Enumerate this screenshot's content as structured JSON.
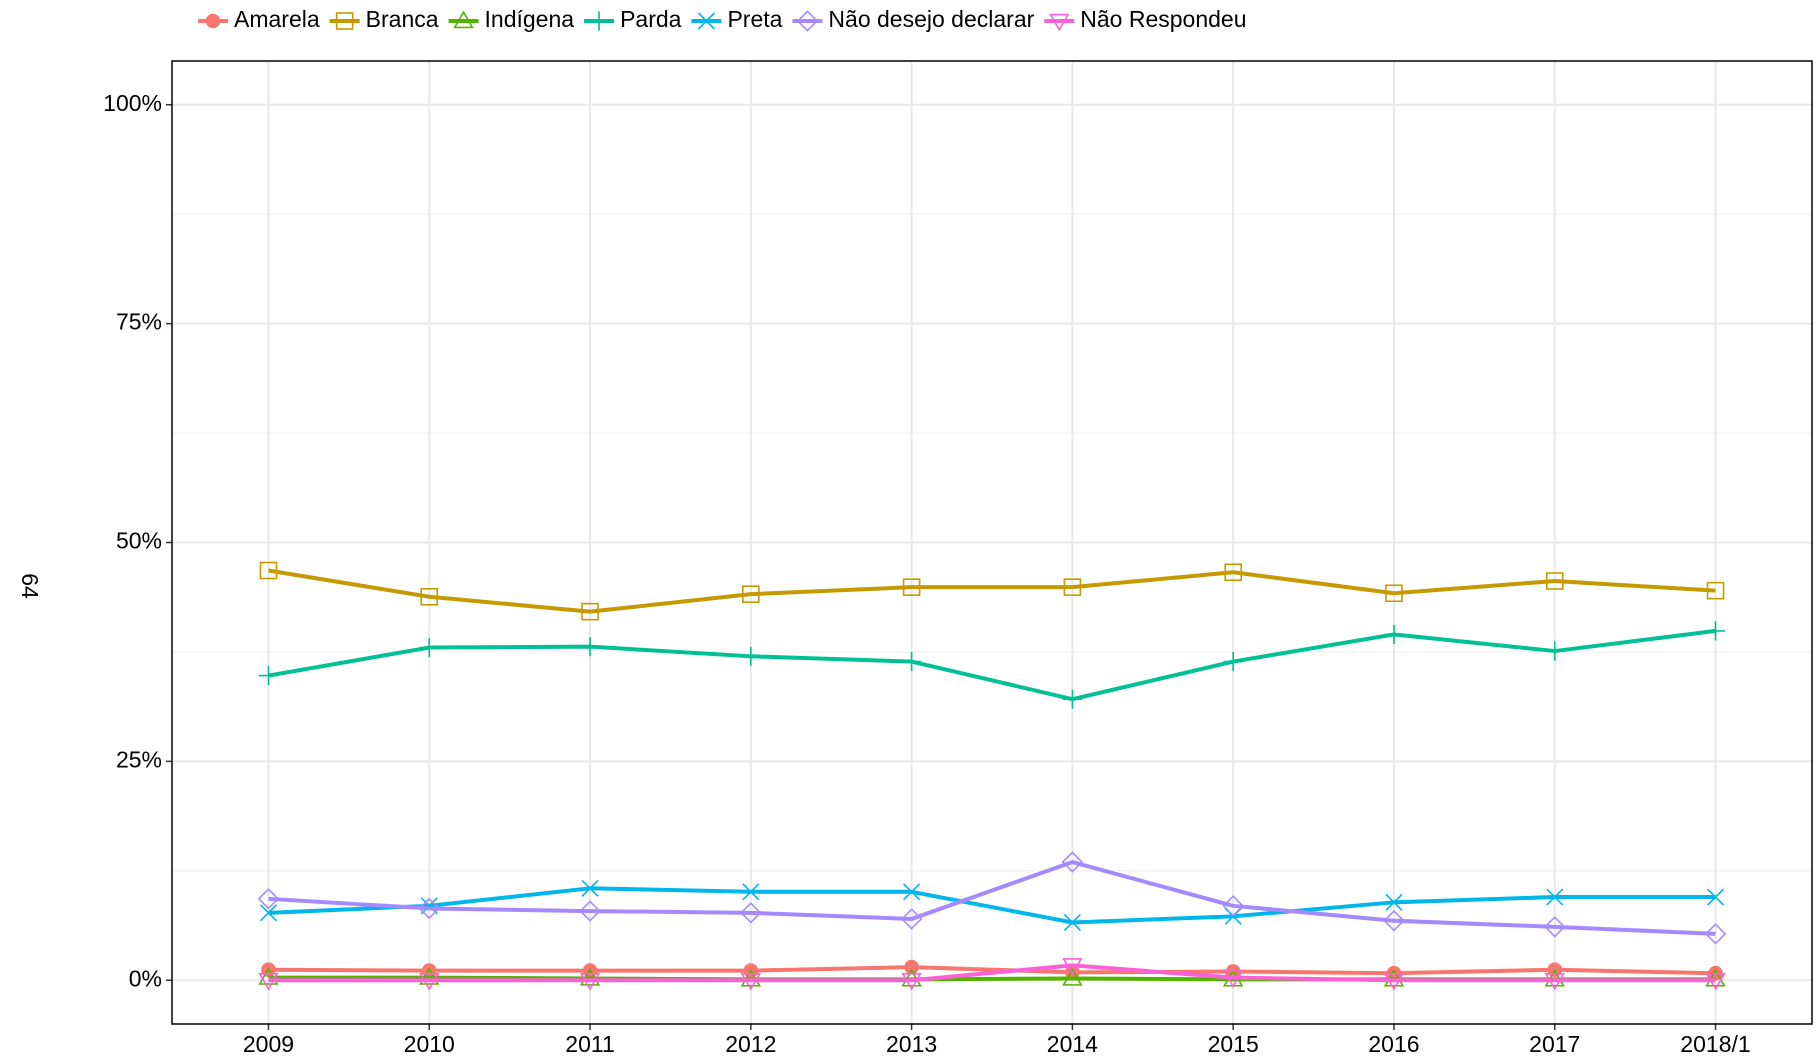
{
  "page_number": "64",
  "chart_data": {
    "type": "line",
    "categories": [
      "2009",
      "2010",
      "2011",
      "2012",
      "2013",
      "2014",
      "2015",
      "2016",
      "2017",
      "2018/1"
    ],
    "ylim": [
      -5,
      105
    ],
    "yticks": [
      {
        "value": 0,
        "label": "0%"
      },
      {
        "value": 25,
        "label": "25%"
      },
      {
        "value": 50,
        "label": "50%"
      },
      {
        "value": 75,
        "label": "75%"
      },
      {
        "value": 100,
        "label": "100%"
      }
    ],
    "grid": true,
    "legend": "top",
    "series": [
      {
        "name": "Amarela",
        "color": "#F8766D",
        "marker": "circle",
        "values": [
          1.2,
          1.1,
          1.1,
          1.1,
          1.5,
          0.9,
          1.0,
          0.8,
          1.2,
          0.8
        ]
      },
      {
        "name": "Branca",
        "color": "#C49A00",
        "marker": "square",
        "values": [
          46.8,
          43.8,
          42.1,
          44.1,
          44.9,
          44.9,
          46.6,
          44.2,
          45.6,
          44.5
        ]
      },
      {
        "name": "Indígena",
        "color": "#53B400",
        "marker": "triangle",
        "values": [
          0.3,
          0.3,
          0.2,
          0.1,
          0.1,
          0.2,
          0.1,
          0.1,
          0.1,
          0.1
        ]
      },
      {
        "name": "Parda",
        "color": "#00C094",
        "marker": "plus",
        "values": [
          34.8,
          38.0,
          38.1,
          37.0,
          36.4,
          32.1,
          36.4,
          39.5,
          37.6,
          39.9
        ]
      },
      {
        "name": "Preta",
        "color": "#00B6EB",
        "marker": "cross",
        "values": [
          7.7,
          8.5,
          10.5,
          10.1,
          10.1,
          6.6,
          7.3,
          8.9,
          9.5,
          9.5
        ]
      },
      {
        "name": "Não desejo declarar",
        "color": "#A58AFF",
        "marker": "diamond",
        "values": [
          9.3,
          8.2,
          7.9,
          7.7,
          7.0,
          13.5,
          8.5,
          6.8,
          6.1,
          5.3
        ]
      },
      {
        "name": "Não Respondeu",
        "color": "#FB61D7",
        "marker": "down-triangle",
        "values": [
          0,
          0,
          0,
          0,
          0,
          1.7,
          0.3,
          0,
          0,
          0
        ]
      }
    ]
  }
}
